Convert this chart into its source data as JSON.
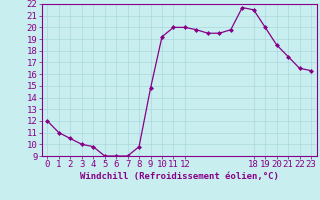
{
  "x": [
    0,
    1,
    2,
    3,
    4,
    5,
    6,
    7,
    8,
    9,
    10,
    11,
    12,
    13,
    14,
    15,
    16,
    17,
    18,
    19,
    20,
    21,
    22,
    23
  ],
  "y": [
    12,
    11,
    10.5,
    10,
    9.8,
    9.0,
    9.0,
    9.0,
    9.8,
    14.8,
    19.2,
    20.0,
    20.0,
    19.8,
    19.5,
    19.5,
    19.8,
    21.7,
    21.5,
    20.0,
    18.5,
    17.5,
    16.5,
    16.3
  ],
  "line_color": "#880088",
  "marker_color": "#880088",
  "bg_color": "#c8eef0",
  "grid_color": "#aad8dc",
  "xlabel": "Windchill (Refroidissement éolien,°C)",
  "ylim": [
    9,
    22
  ],
  "xlim": [
    -0.5,
    23.5
  ],
  "yticks": [
    9,
    10,
    11,
    12,
    13,
    14,
    15,
    16,
    17,
    18,
    19,
    20,
    21,
    22
  ],
  "xticks": [
    0,
    1,
    2,
    3,
    4,
    5,
    6,
    7,
    8,
    9,
    10,
    11,
    12,
    18,
    19,
    20,
    21,
    22,
    23
  ],
  "xtick_labels": [
    "0",
    "1",
    "2",
    "3",
    "4",
    "5",
    "6",
    "7",
    "8",
    "9",
    "10",
    "11",
    "12",
    "18",
    "19",
    "20",
    "21",
    "22",
    "23"
  ],
  "axis_color": "#880088",
  "font_size": 6.5
}
